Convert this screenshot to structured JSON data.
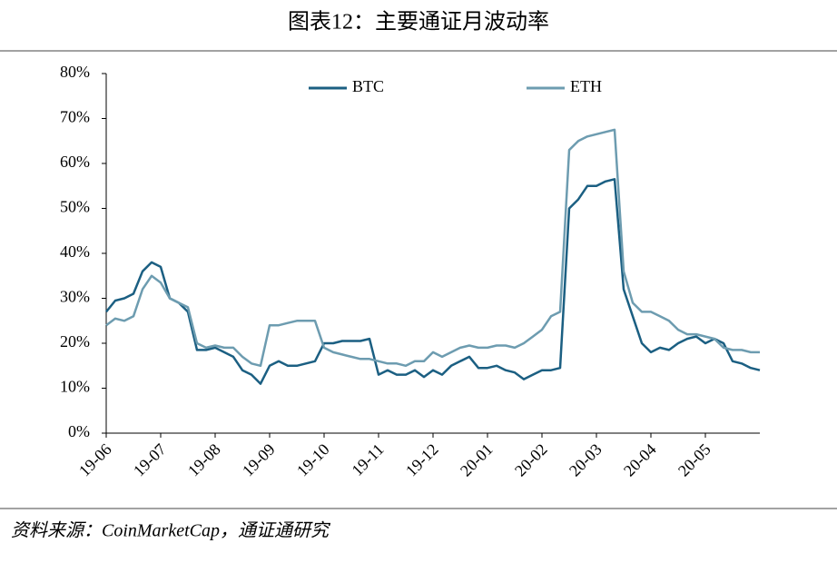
{
  "chart_data": {
    "type": "line",
    "title": "图表12：主要通证月波动率",
    "source": "资料来源：CoinMarketCap，通证通研究",
    "categories": [
      "19-06",
      null,
      null,
      null,
      null,
      null,
      "19-07",
      null,
      null,
      null,
      null,
      null,
      "19-08",
      null,
      null,
      null,
      null,
      null,
      "19-09",
      null,
      null,
      null,
      null,
      null,
      "19-10",
      null,
      null,
      null,
      null,
      null,
      "19-11",
      null,
      null,
      null,
      null,
      null,
      "19-12",
      null,
      null,
      null,
      null,
      null,
      "20-01",
      null,
      null,
      null,
      null,
      null,
      "20-02",
      null,
      null,
      null,
      null,
      null,
      "20-03",
      null,
      null,
      null,
      null,
      null,
      "20-04",
      null,
      null,
      null,
      null,
      null,
      "20-05",
      null,
      null,
      null,
      null,
      null,
      null
    ],
    "series": [
      {
        "name": "BTC",
        "color": "#1b5f82",
        "values": [
          27,
          29.5,
          30,
          31,
          36,
          38,
          37,
          30,
          29,
          27,
          18.5,
          18.5,
          19,
          18,
          17,
          14,
          13,
          11,
          15,
          16,
          15,
          15,
          15.5,
          16,
          20,
          20,
          20.5,
          20.5,
          20.5,
          21,
          13,
          14,
          13,
          13,
          14,
          12.5,
          14,
          13,
          15,
          16,
          17,
          14.5,
          14.5,
          15,
          14,
          13.5,
          12,
          13,
          14,
          14,
          14.5,
          50,
          52,
          55,
          55,
          56,
          56.5,
          32,
          26,
          20,
          18,
          19,
          18.5,
          20,
          21,
          21.5,
          20,
          21,
          20,
          16,
          15.5,
          14.5,
          14
        ]
      },
      {
        "name": "ETH",
        "color": "#6d9cb0",
        "values": [
          24,
          25.5,
          25,
          26,
          32,
          35,
          33.5,
          30,
          29,
          28,
          20,
          19,
          19.5,
          19,
          19,
          17,
          15.5,
          15,
          24,
          24,
          24.5,
          25,
          25,
          25,
          19,
          18,
          17.5,
          17,
          16.5,
          16.5,
          16,
          15.5,
          15.5,
          15,
          16,
          16,
          18,
          17,
          18,
          19,
          19.5,
          19,
          19,
          19.5,
          19.5,
          19,
          20,
          21.5,
          23,
          26,
          27,
          63,
          65,
          66,
          66.5,
          67,
          67.5,
          36,
          29,
          27,
          27,
          26,
          25,
          23,
          22,
          22,
          21.5,
          21,
          19,
          18.5,
          18.5,
          18,
          18
        ]
      }
    ],
    "ylim": [
      0,
      80
    ],
    "yticks": [
      {
        "value": 0,
        "label": "0%"
      },
      {
        "value": 10,
        "label": "10%"
      },
      {
        "value": 20,
        "label": "20%"
      },
      {
        "value": 30,
        "label": "30%"
      },
      {
        "value": 40,
        "label": "40%"
      },
      {
        "value": 50,
        "label": "50%"
      },
      {
        "value": 60,
        "label": "60%"
      },
      {
        "value": 70,
        "label": "70%"
      },
      {
        "value": 80,
        "label": "80%"
      }
    ],
    "grid": false
  }
}
